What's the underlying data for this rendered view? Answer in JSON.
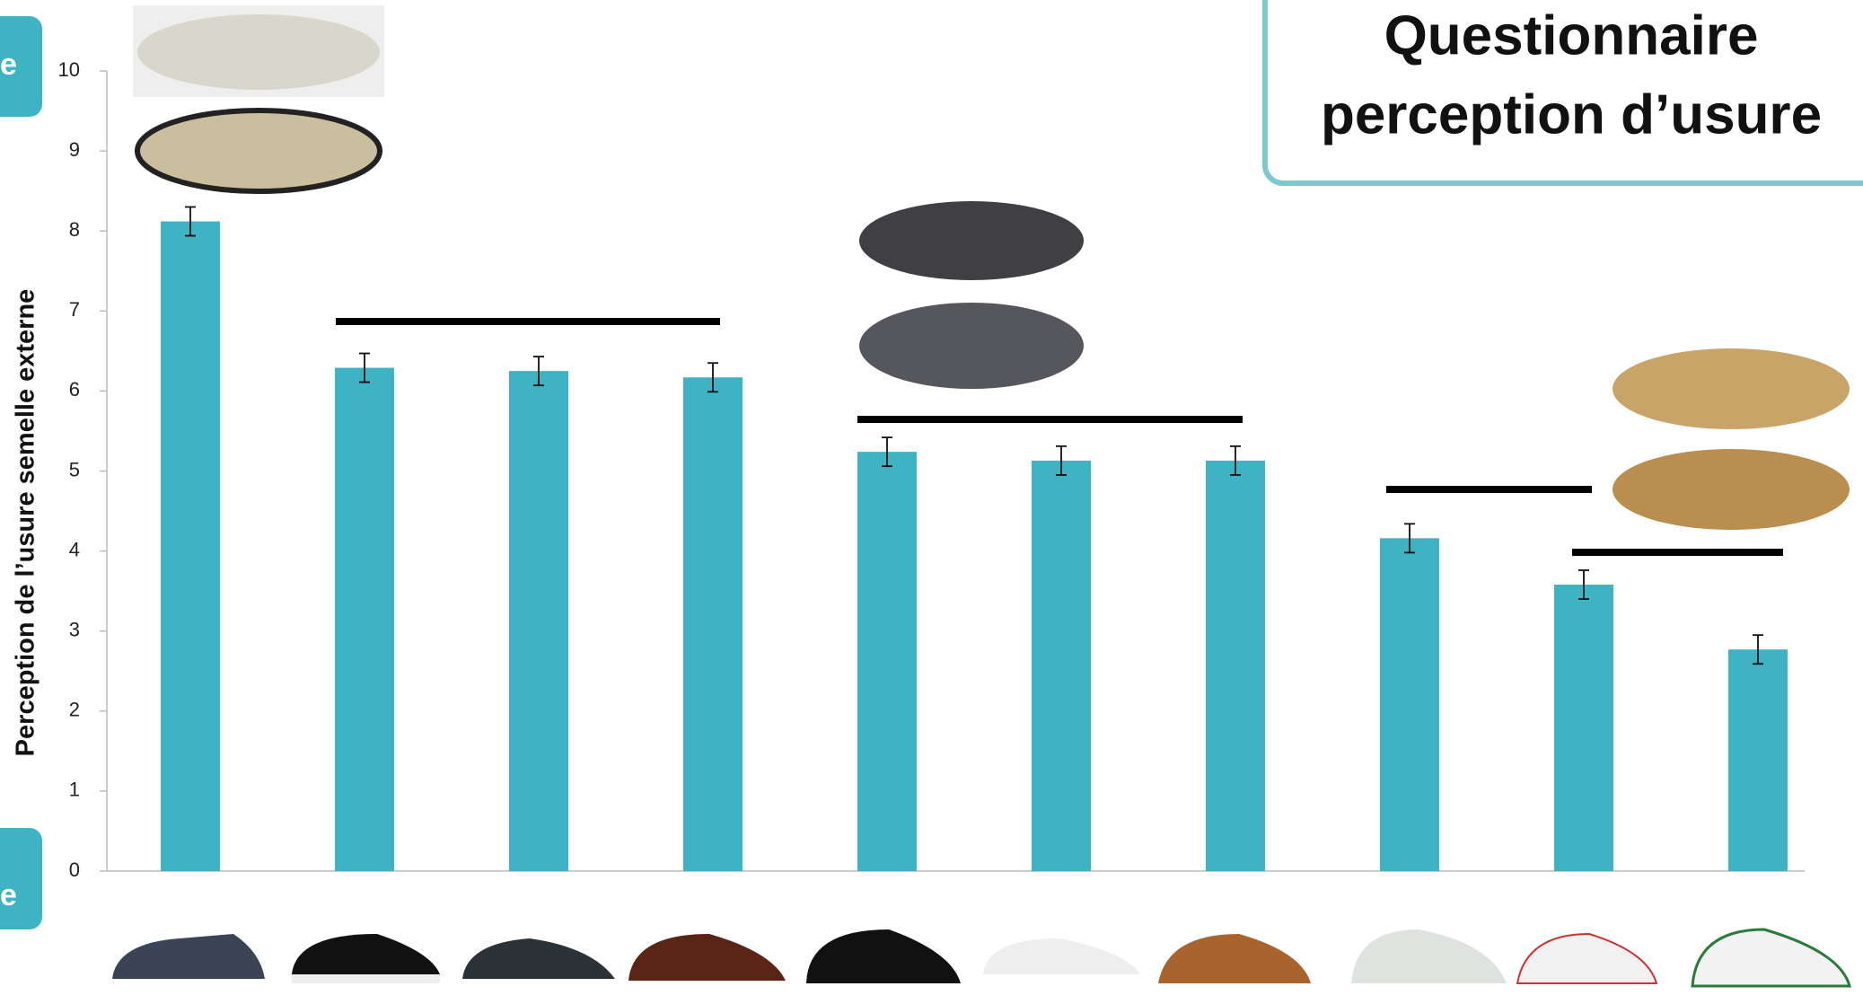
{
  "chart_data": {
    "type": "bar",
    "ylabel": "Perception de l’usure semelle externe",
    "title_lines": [
      "Questionnaire",
      "perception d’usure"
    ],
    "side_tabs": [
      "e",
      "e"
    ],
    "categories": [
      null,
      null,
      null,
      null,
      null,
      null,
      null,
      null,
      null,
      null
    ],
    "values": [
      8.12,
      6.29,
      6.25,
      6.17,
      5.24,
      5.13,
      5.13,
      4.16,
      3.58,
      2.77
    ],
    "errors": [
      0.18,
      0.18,
      0.18,
      0.18,
      0.18,
      0.18,
      0.18,
      0.18,
      0.18,
      0.18
    ],
    "color": "#3db3c4",
    "ylim": [
      0,
      10
    ],
    "yticks": [
      0,
      1,
      2,
      3,
      4,
      5,
      6,
      7,
      8,
      9,
      10
    ]
  }
}
